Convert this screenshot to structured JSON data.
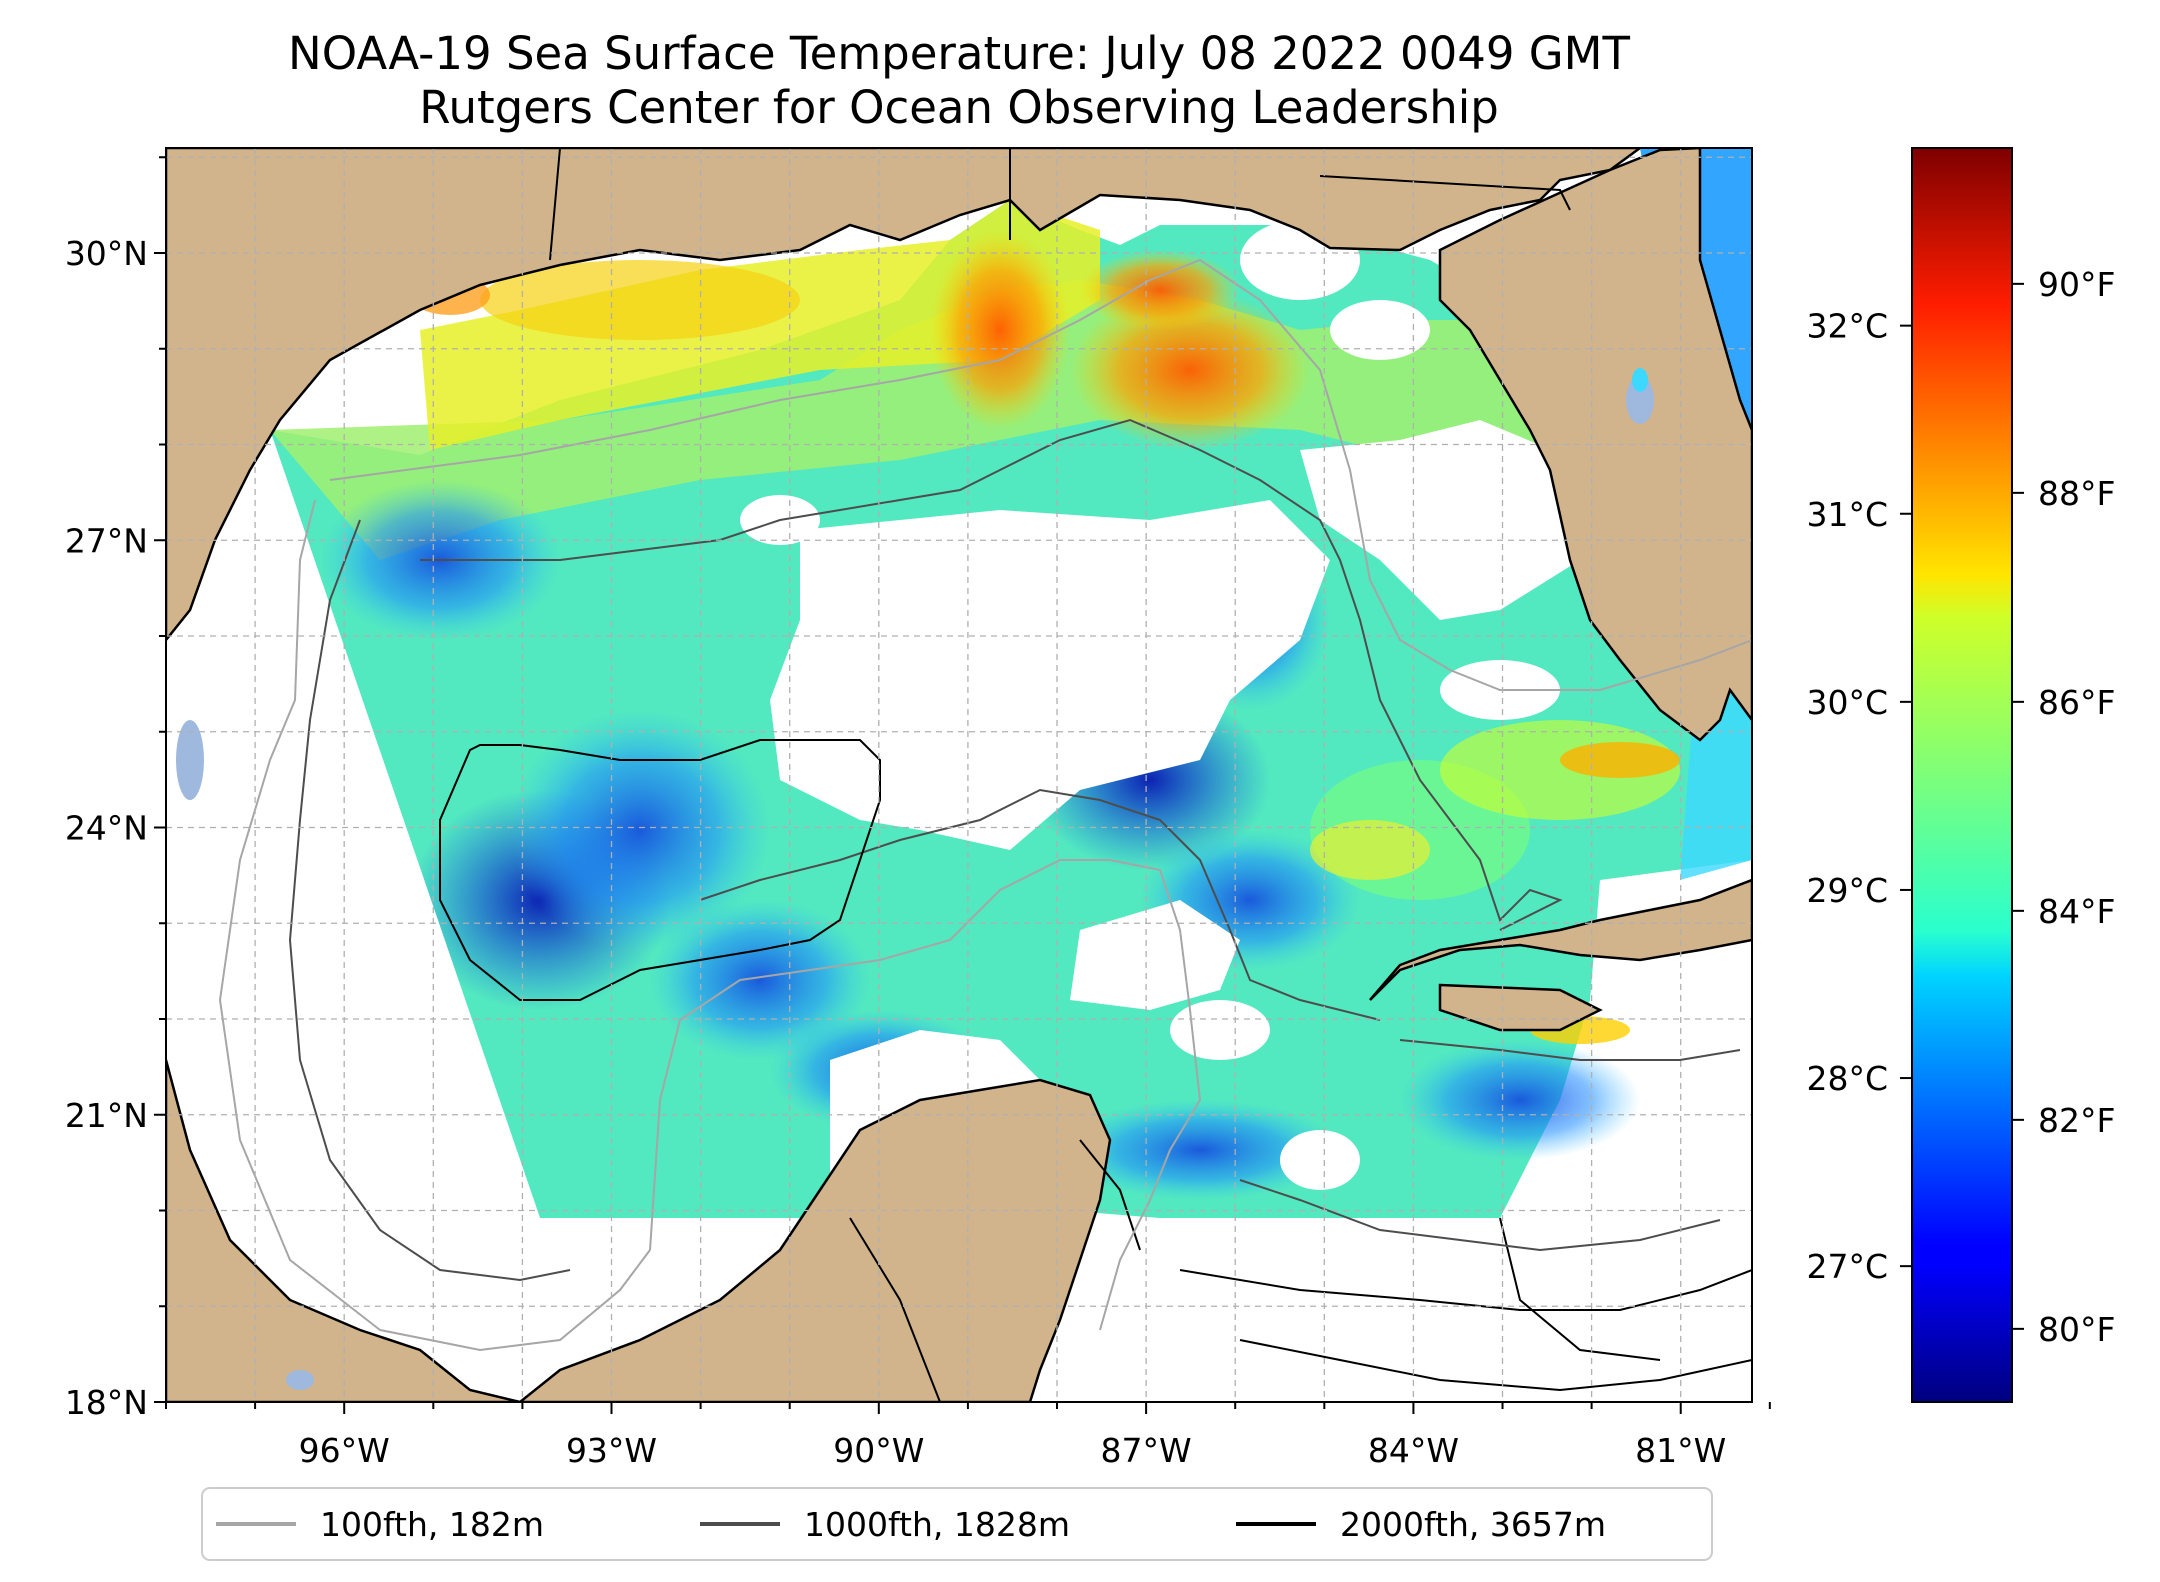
{
  "title": {
    "line1": "NOAA-19 Sea Surface Temperature: July 08 2022 0049 GMT",
    "line2": "Rutgers Center for Ocean Observing Leadership"
  },
  "map": {
    "lon_range": [
      -98,
      -80.2
    ],
    "lat_range": [
      18,
      31
    ],
    "lon_ticks": [
      {
        "value": -96,
        "label": "96°W"
      },
      {
        "value": -93,
        "label": "93°W"
      },
      {
        "value": -90,
        "label": "90°W"
      },
      {
        "value": -87,
        "label": "87°W"
      },
      {
        "value": -84,
        "label": "84°W"
      },
      {
        "value": -81,
        "label": "81°W"
      }
    ],
    "lat_ticks": [
      {
        "value": 18,
        "label": "18°N"
      },
      {
        "value": 21,
        "label": "21°N"
      },
      {
        "value": 24,
        "label": "24°N"
      },
      {
        "value": 27,
        "label": "27°N"
      },
      {
        "value": 30,
        "label": "30°N"
      }
    ],
    "gridlines": true,
    "colors": {
      "land": "#d2b48c",
      "coastline": "#000000",
      "lakes": "#9fb8de",
      "grid": "#b0b0b0"
    }
  },
  "legend": {
    "entries": [
      {
        "label": "100fth, 182m",
        "color": "#a6a6a6"
      },
      {
        "label": "1000fth, 1828m",
        "color": "#4d4d4d"
      },
      {
        "label": "2000fth, 3657m",
        "color": "#000000"
      }
    ]
  },
  "colorbar": {
    "colormap": "jet",
    "celsius_ticks": [
      {
        "value": 27,
        "label": "27°C"
      },
      {
        "value": 28,
        "label": "28°C"
      },
      {
        "value": 29,
        "label": "29°C"
      },
      {
        "value": 30,
        "label": "30°C"
      },
      {
        "value": 31,
        "label": "31°C"
      },
      {
        "value": 32,
        "label": "32°C"
      }
    ],
    "fahrenheit_ticks": [
      {
        "value": 80,
        "label": "80°F"
      },
      {
        "value": 82,
        "label": "82°F"
      },
      {
        "value": 84,
        "label": "84°F"
      },
      {
        "value": 86,
        "label": "86°F"
      },
      {
        "value": 88,
        "label": "88°F"
      },
      {
        "value": 90,
        "label": "90°F"
      }
    ],
    "range_f": [
      79.3,
      91.3
    ]
  }
}
